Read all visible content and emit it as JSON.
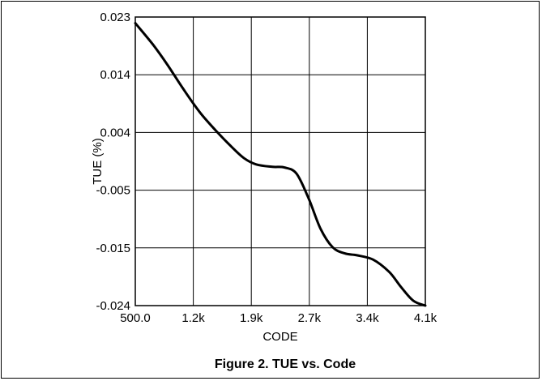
{
  "caption": "Figure 2. TUE vs. Code",
  "chart_data": {
    "type": "line",
    "title": "",
    "xlabel": "CODE",
    "ylabel": "TUE (%)",
    "x_tick_labels": [
      "500.0",
      "1.2k",
      "1.9k",
      "2.7k",
      "3.4k",
      "4.1k"
    ],
    "y_tick_labels": [
      "0.023",
      "0.014",
      "0.004",
      "-0.005",
      "-0.015",
      "-0.024"
    ],
    "xlim": [
      500,
      4100
    ],
    "ylim": [
      -0.024,
      0.023
    ],
    "grid": true,
    "series": [
      {
        "color": "#000000",
        "x": [
          500,
          720,
          900,
          1100,
          1300,
          1500,
          1700,
          1850,
          2000,
          2200,
          2350,
          2500,
          2650,
          2800,
          2950,
          3100,
          3250,
          3450,
          3650,
          3800,
          3950,
          4100
        ],
        "y": [
          0.022,
          0.0185,
          0.0152,
          0.0112,
          0.0075,
          0.0045,
          0.0018,
          0.0,
          -0.001,
          -0.0014,
          -0.0015,
          -0.0025,
          -0.0065,
          -0.0115,
          -0.0145,
          -0.0155,
          -0.0158,
          -0.0165,
          -0.0185,
          -0.021,
          -0.0232,
          -0.024
        ]
      }
    ]
  }
}
